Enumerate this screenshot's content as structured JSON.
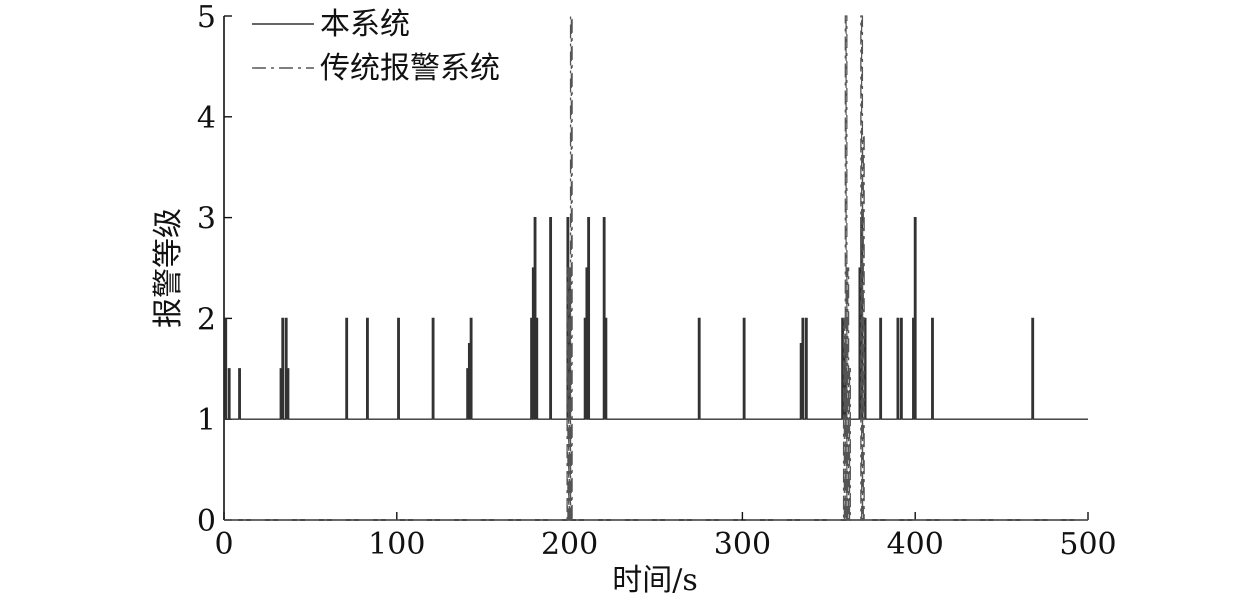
{
  "chart_data": {
    "type": "line",
    "title": "",
    "xlabel": "时间/s",
    "ylabel": "报警等级",
    "xlim": [
      0,
      500
    ],
    "ylim": [
      0,
      5
    ],
    "x_ticks": [
      0,
      100,
      200,
      300,
      400,
      500
    ],
    "y_ticks": [
      0,
      1,
      2,
      3,
      4,
      5
    ],
    "grid": false,
    "legend_position": "top-left",
    "series": [
      {
        "name": "本系统",
        "style": "solid",
        "color": "#333333",
        "baseline": 1,
        "spikes": [
          [
            1,
            2
          ],
          [
            3,
            1.5
          ],
          [
            9,
            1.5
          ],
          [
            33,
            1.5
          ],
          [
            34,
            2
          ],
          [
            36,
            2
          ],
          [
            37,
            1.5
          ],
          [
            71,
            2
          ],
          [
            83,
            2
          ],
          [
            101,
            2
          ],
          [
            121,
            2
          ],
          [
            141,
            1.5
          ],
          [
            142,
            1.75
          ],
          [
            143,
            2
          ],
          [
            178,
            2
          ],
          [
            179,
            2.5
          ],
          [
            180,
            3
          ],
          [
            181,
            2
          ],
          [
            189,
            3
          ],
          [
            199,
            3
          ],
          [
            200,
            2.5
          ],
          [
            209,
            2
          ],
          [
            210,
            2.5
          ],
          [
            211,
            3
          ],
          [
            220,
            3
          ],
          [
            221,
            2
          ],
          [
            275,
            2
          ],
          [
            301,
            2
          ],
          [
            334,
            1.75
          ],
          [
            335,
            2
          ],
          [
            337,
            2
          ],
          [
            358,
            2
          ],
          [
            359,
            1.75
          ],
          [
            360,
            1.5
          ],
          [
            368,
            2.5
          ],
          [
            369,
            3
          ],
          [
            371,
            2
          ],
          [
            380,
            2
          ],
          [
            390,
            2
          ],
          [
            392,
            2
          ],
          [
            399,
            2
          ],
          [
            400,
            3
          ],
          [
            410,
            2
          ],
          [
            468,
            2
          ]
        ],
        "x_end": 500
      },
      {
        "name": "传统报警系统",
        "style": "dash-dot",
        "color": "#555555",
        "baseline": 0,
        "spikes": [
          [
            199,
            2.5
          ],
          [
            200,
            2.5
          ],
          [
            201,
            5
          ],
          [
            359,
            2
          ],
          [
            360,
            5
          ],
          [
            361,
            2.5
          ],
          [
            362,
            1.5
          ],
          [
            369,
            5
          ],
          [
            370,
            3.8
          ]
        ],
        "x_end": 500
      }
    ]
  }
}
